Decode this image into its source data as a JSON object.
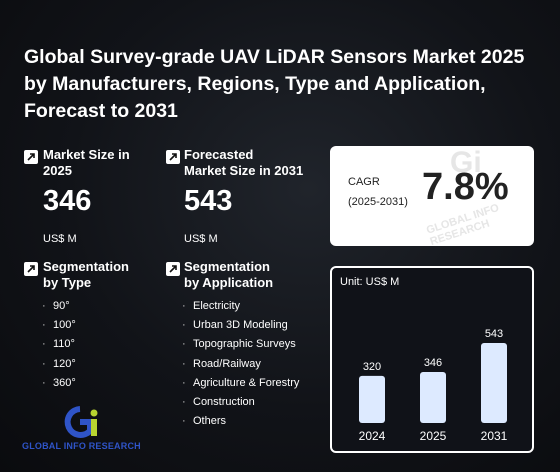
{
  "title": {
    "line1": "Global Survey-grade UAV LiDAR Sensors Market 2025",
    "line2": "by Manufacturers, Regions, Type and Application,",
    "line3": "Forecast to 2031"
  },
  "market_size": {
    "label_line1": "Market Size in",
    "label_line2": "2025",
    "value": "346",
    "unit": "US$ M"
  },
  "forecast": {
    "label_line1": "Forecasted",
    "label_line2": "Market Size in 2031",
    "value": "543",
    "unit": "US$ M"
  },
  "segmentation_type": {
    "label_line1": "Segmentation",
    "label_line2": "by Type",
    "items": [
      "90°",
      "100°",
      "110°",
      "120°",
      "360°"
    ]
  },
  "segmentation_application": {
    "label_line1": "Segmentation",
    "label_line2": "by Application",
    "items": [
      "Electricity",
      "Urban 3D Modeling",
      "Topographic Surveys",
      "Road/Railway",
      "Agriculture & Forestry",
      "Construction",
      "Others"
    ]
  },
  "cagr": {
    "label_line1": "CAGR",
    "label_line2": "(2025-2031)",
    "value": "7.8%"
  },
  "logo": {
    "text": "GLOBAL INFO RESEARCH",
    "mark": "Gi"
  },
  "chart_data": {
    "type": "bar",
    "unit_label": "Unit: US$ M",
    "categories": [
      "2024",
      "2025",
      "2031"
    ],
    "values": [
      320,
      346,
      543
    ],
    "data_labels": [
      "320",
      "346",
      "543"
    ],
    "bar_color": "#ddeaff"
  }
}
